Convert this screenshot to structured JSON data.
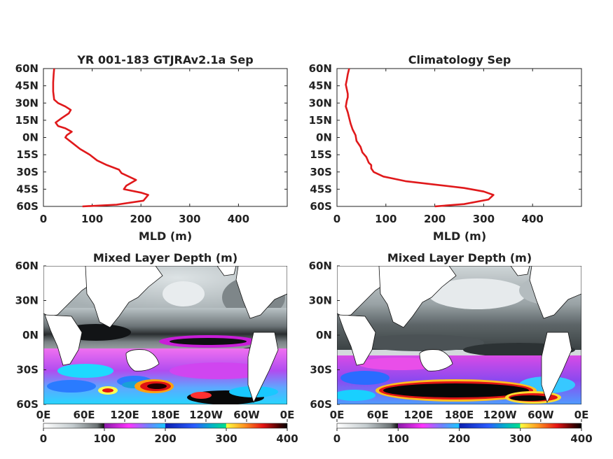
{
  "chart_data": [
    {
      "type": "line",
      "title": "YR 001-183 GTJRAv2.1a Sep",
      "xlabel": "MLD (m)",
      "ylabel": "",
      "xlim": [
        0,
        500
      ],
      "xticks": [
        "0",
        "100",
        "200",
        "300",
        "400"
      ],
      "ylim": [
        -60,
        60
      ],
      "yticks": [
        "60N",
        "45N",
        "30N",
        "15N",
        "0N",
        "15S",
        "30S",
        "45S",
        "60S"
      ],
      "series": [
        {
          "color": "#e0191b",
          "x": [
            80,
            150,
            205,
            215,
            200,
            165,
            170,
            190,
            175,
            160,
            155,
            130,
            110,
            95,
            75,
            60,
            45,
            48,
            58,
            45,
            30,
            25,
            38,
            52,
            56,
            45,
            30,
            22,
            20,
            20,
            21,
            22
          ],
          "y": [
            -60,
            -58.5,
            -55,
            -50,
            -48,
            -45,
            -42,
            -37,
            -34,
            -31,
            -28,
            -24,
            -20,
            -15,
            -10,
            -5,
            0,
            2,
            5,
            8,
            10,
            13,
            17,
            21,
            24,
            27,
            30,
            33,
            40,
            48,
            55,
            60
          ]
        }
      ]
    },
    {
      "type": "line",
      "title": "Climatology Sep",
      "xlabel": "MLD (m)",
      "ylabel": "",
      "xlim": [
        0,
        500
      ],
      "xticks": [
        "0",
        "100",
        "200",
        "300",
        "400"
      ],
      "ylim": [
        -60,
        60
      ],
      "yticks": [
        "60N",
        "45N",
        "30N",
        "15N",
        "0N",
        "15S",
        "30S",
        "45S",
        "60S"
      ],
      "series": [
        {
          "color": "#e0191b",
          "x": [
            200,
            260,
            310,
            320,
            300,
            260,
            200,
            140,
            95,
            75,
            70,
            70,
            65,
            60,
            52,
            48,
            40,
            38,
            32,
            28,
            25,
            22,
            18,
            20,
            22,
            22,
            20,
            18,
            20,
            22,
            25
          ],
          "y": [
            -60,
            -58,
            -54,
            -50,
            -47,
            -44,
            -41,
            -38,
            -34,
            -30,
            -27,
            -24,
            -22,
            -17,
            -13,
            -8,
            -3,
            2,
            7,
            12,
            17,
            22,
            27,
            32,
            35,
            38,
            42,
            46,
            50,
            55,
            60
          ]
        }
      ]
    },
    {
      "type": "heatmap",
      "title": "Mixed Layer Depth (m)",
      "xticks": [
        "0E",
        "60E",
        "120E",
        "180E",
        "120W",
        "60W",
        "0E"
      ],
      "yticks": [
        "60N",
        "30N",
        "0N",
        "30S",
        "60S"
      ],
      "ylim": [
        -60,
        60
      ],
      "colorbar": {
        "range": [
          0,
          400
        ],
        "ticks": [
          "0",
          "100",
          "200",
          "300",
          "400"
        ]
      }
    },
    {
      "type": "heatmap",
      "title": "Mixed Layer Depth (m)",
      "xticks": [
        "0E",
        "60E",
        "120E",
        "180E",
        "120W",
        "60W",
        "0E"
      ],
      "yticks": [
        "60N",
        "30N",
        "0N",
        "30S",
        "60S"
      ],
      "ylim": [
        -60,
        60
      ],
      "colorbar": {
        "range": [
          0,
          400
        ],
        "ticks": [
          "0",
          "100",
          "200",
          "300",
          "400"
        ]
      }
    }
  ]
}
